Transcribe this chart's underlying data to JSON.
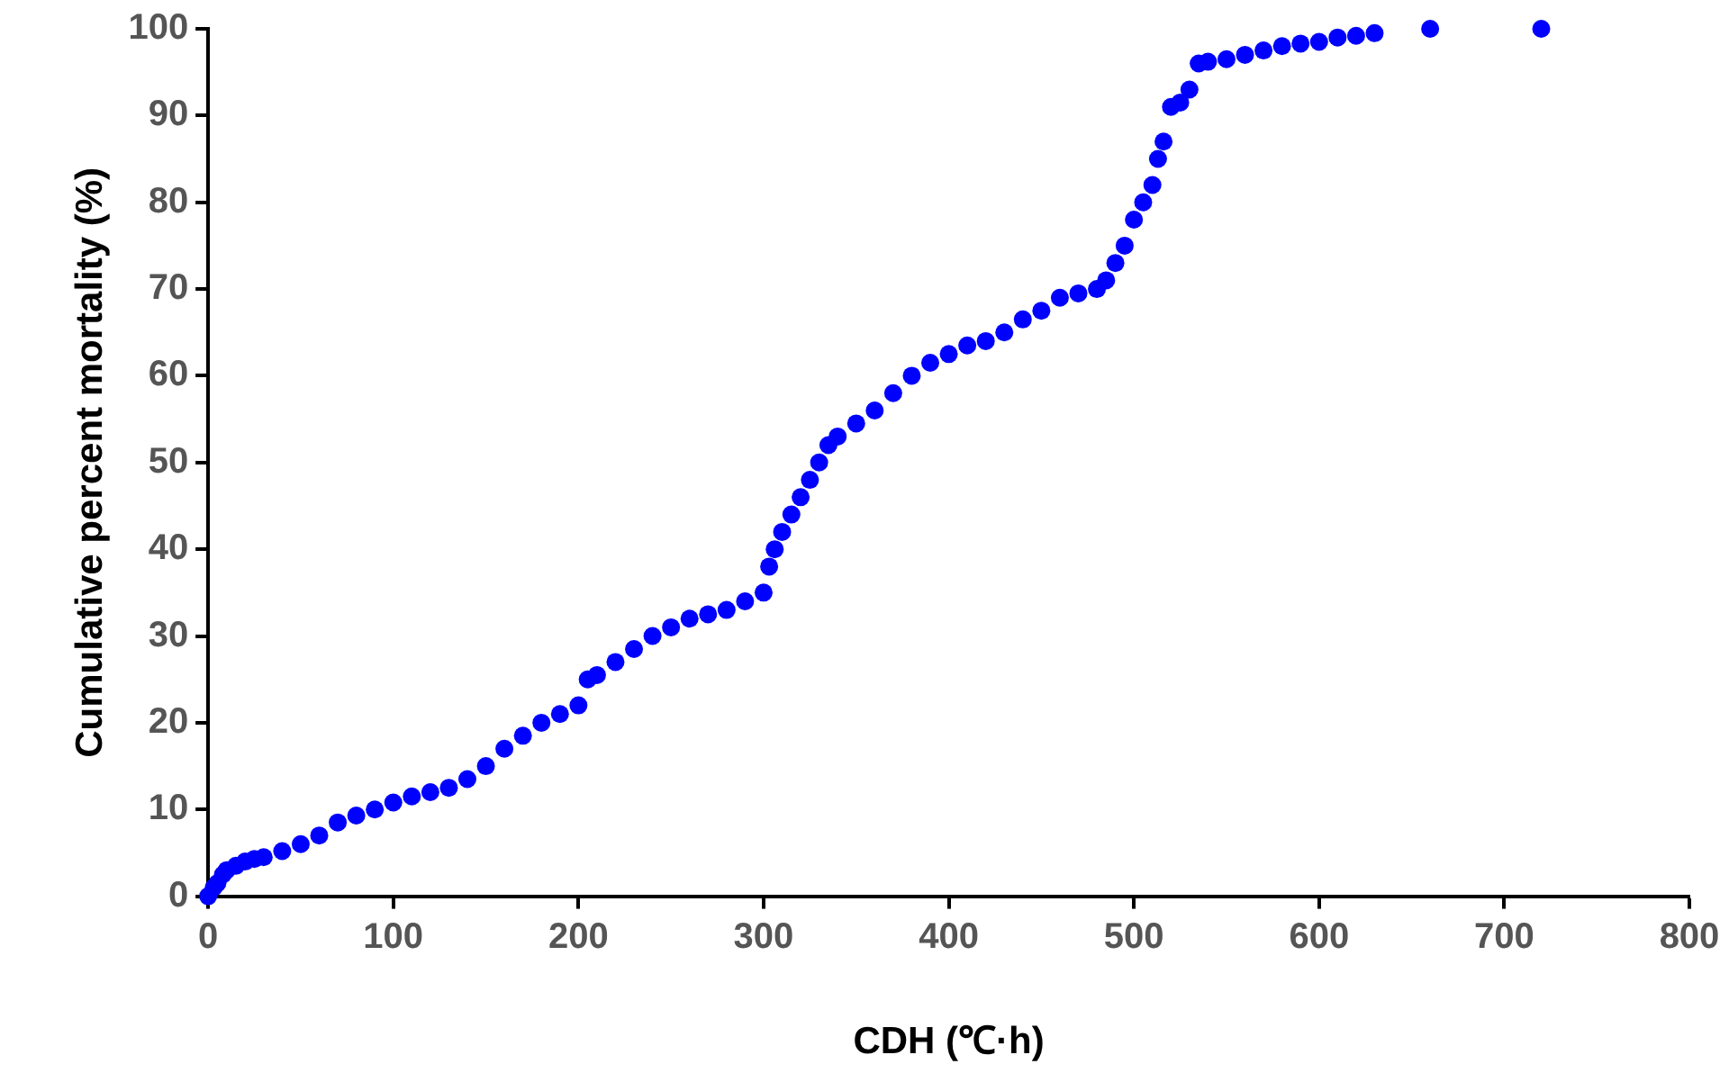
{
  "chart_data": {
    "type": "scatter",
    "xlabel": "CDH (℃·h)",
    "ylabel": "Cumulative percent mortality (%)",
    "x": [
      0,
      3,
      5,
      8,
      10,
      15,
      20,
      25,
      30,
      40,
      50,
      60,
      70,
      80,
      90,
      100,
      110,
      120,
      130,
      140,
      150,
      160,
      170,
      180,
      190,
      200,
      205,
      210,
      220,
      230,
      240,
      250,
      260,
      270,
      280,
      290,
      300,
      303,
      306,
      310,
      315,
      320,
      325,
      330,
      335,
      340,
      350,
      360,
      370,
      380,
      390,
      400,
      410,
      420,
      430,
      440,
      450,
      460,
      470,
      480,
      485,
      490,
      495,
      500,
      505,
      510,
      513,
      516,
      520,
      525,
      530,
      535,
      540,
      550,
      560,
      570,
      580,
      590,
      600,
      610,
      620,
      630,
      660,
      720
    ],
    "series": [
      {
        "color": "#0000ff",
        "values": [
          0,
          1,
          1.5,
          2.5,
          3,
          3.5,
          4,
          4.3,
          4.5,
          5.2,
          6,
          7,
          8.5,
          9.3,
          10,
          10.8,
          11.5,
          12,
          12.5,
          13.5,
          15,
          17,
          18.5,
          20,
          21,
          22,
          25,
          25.5,
          27,
          28.5,
          30,
          31,
          32,
          32.5,
          33,
          34,
          35,
          38,
          40,
          42,
          44,
          46,
          48,
          50,
          52,
          53,
          54.5,
          56,
          58,
          60,
          61.5,
          62.5,
          63.5,
          64,
          65,
          66.5,
          67.5,
          69,
          69.5,
          70,
          71,
          73,
          75,
          78,
          80,
          82,
          85,
          87,
          91,
          91.5,
          93,
          96,
          96.2,
          96.5,
          97,
          97.5,
          98,
          98.3,
          98.5,
          99,
          99.2,
          99.5,
          100,
          100
        ]
      }
    ],
    "xlim": [
      0,
      800
    ],
    "xticks": [
      0,
      100,
      200,
      300,
      400,
      500,
      600,
      700,
      800
    ],
    "ylim": [
      0,
      100
    ],
    "yticks": [
      0,
      10,
      20,
      30,
      40,
      50,
      60,
      70,
      80,
      90,
      100
    ],
    "grid": false,
    "legend": false,
    "marker": "circle"
  }
}
